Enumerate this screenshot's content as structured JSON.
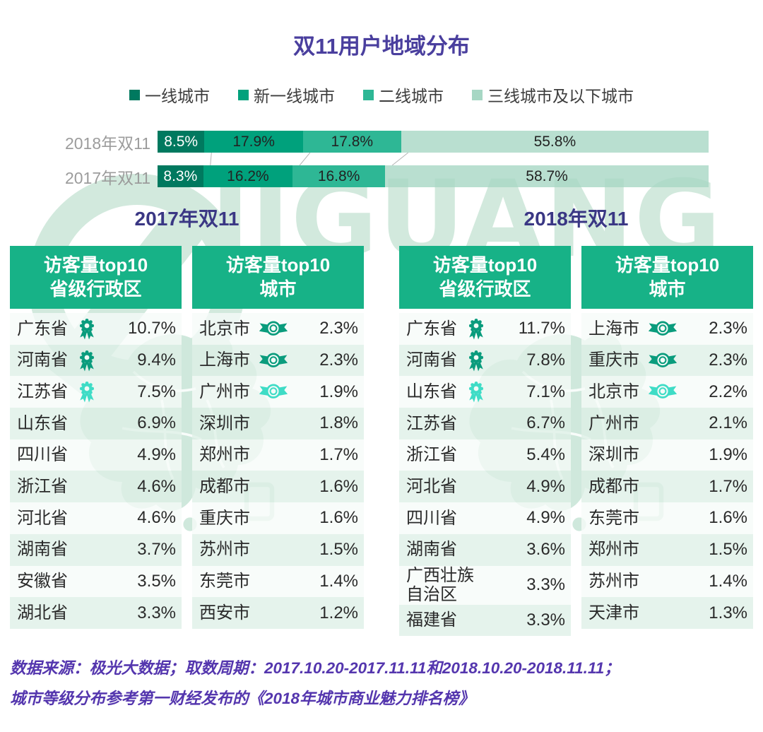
{
  "title": "双11用户地域分布",
  "watermark": {
    "text": "JIGUANG"
  },
  "legend": {
    "items": [
      {
        "label": "一线城市",
        "color": "#00795f"
      },
      {
        "label": "新一线城市",
        "color": "#00a17c"
      },
      {
        "label": "二线城市",
        "color": "#2eb795"
      },
      {
        "label": "三线城市及以下城市",
        "color": "#a7d7c4"
      }
    ]
  },
  "bar_chart": {
    "segment_colors": [
      "#00795f",
      "#00a17c",
      "#2eb795",
      "rgba(167,215,196,0.8)"
    ],
    "connector_color": "#b5b5b5",
    "rows": [
      {
        "label": "2018年双11",
        "segments": [
          {
            "label": "8.5%",
            "value": 8.5
          },
          {
            "label": "17.9%",
            "value": 17.9
          },
          {
            "label": "17.8%",
            "value": 17.8
          },
          {
            "label": "55.8%",
            "value": 55.8
          }
        ]
      },
      {
        "label": "2017年双11",
        "segments": [
          {
            "label": "8.3%",
            "value": 8.3
          },
          {
            "label": "16.2%",
            "value": 16.2
          },
          {
            "label": "16.8%",
            "value": 16.8
          },
          {
            "label": "58.7%",
            "value": 58.7
          }
        ]
      }
    ]
  },
  "colors": {
    "medal_dark": "#0a9c7d",
    "medal_light": "#3fdcc6",
    "header_green": "#17b287",
    "title_purple": "#4a3f9e",
    "footer_purple": "#5436ae"
  },
  "sections": [
    {
      "heading": "2017年双11",
      "tables": [
        {
          "kind": "province",
          "header": [
            "访客量top10",
            "省级行政区"
          ],
          "rows": [
            {
              "name": "广东省",
              "value": "10.7%",
              "medal": "dark"
            },
            {
              "name": "河南省",
              "value": "9.4%",
              "medal": "dark"
            },
            {
              "name": "江苏省",
              "value": "7.5%",
              "medal": "light"
            },
            {
              "name": "山东省",
              "value": "6.9%",
              "medal": "none"
            },
            {
              "name": "四川省",
              "value": "4.9%",
              "medal": "none"
            },
            {
              "name": "浙江省",
              "value": "4.6%",
              "medal": "none"
            },
            {
              "name": "河北省",
              "value": "4.6%",
              "medal": "none"
            },
            {
              "name": "湖南省",
              "value": "3.7%",
              "medal": "none"
            },
            {
              "name": "安徽省",
              "value": "3.5%",
              "medal": "none"
            },
            {
              "name": "湖北省",
              "value": "3.3%",
              "medal": "none"
            }
          ]
        },
        {
          "kind": "city",
          "header": [
            "访客量top10",
            "城市"
          ],
          "rows": [
            {
              "name": "北京市",
              "value": "2.3%",
              "medal": "dark"
            },
            {
              "name": "上海市",
              "value": "2.3%",
              "medal": "dark"
            },
            {
              "name": "广州市",
              "value": "1.9%",
              "medal": "light"
            },
            {
              "name": "深圳市",
              "value": "1.8%",
              "medal": "none"
            },
            {
              "name": "郑州市",
              "value": "1.7%",
              "medal": "none"
            },
            {
              "name": "成都市",
              "value": "1.6%",
              "medal": "none"
            },
            {
              "name": "重庆市",
              "value": "1.6%",
              "medal": "none"
            },
            {
              "name": "苏州市",
              "value": "1.5%",
              "medal": "none"
            },
            {
              "name": "东莞市",
              "value": "1.4%",
              "medal": "none"
            },
            {
              "name": "西安市",
              "value": "1.2%",
              "medal": "none"
            }
          ]
        }
      ]
    },
    {
      "heading": "2018年双11",
      "tables": [
        {
          "kind": "province",
          "header": [
            "访客量top10",
            "省级行政区"
          ],
          "rows": [
            {
              "name": "广东省",
              "value": "11.7%",
              "medal": "dark"
            },
            {
              "name": "河南省",
              "value": "7.8%",
              "medal": "dark"
            },
            {
              "name": "山东省",
              "value": "7.1%",
              "medal": "light"
            },
            {
              "name": "江苏省",
              "value": "6.7%",
              "medal": "none"
            },
            {
              "name": "浙江省",
              "value": "5.4%",
              "medal": "none"
            },
            {
              "name": "河北省",
              "value": "4.9%",
              "medal": "none"
            },
            {
              "name": "四川省",
              "value": "4.9%",
              "medal": "none"
            },
            {
              "name": "湖南省",
              "value": "3.6%",
              "medal": "none"
            },
            {
              "name": "广西壮族自治区",
              "value": "3.3%",
              "medal": "none"
            },
            {
              "name": "福建省",
              "value": "3.3%",
              "medal": "none"
            }
          ]
        },
        {
          "kind": "city",
          "header": [
            "访客量top10",
            "城市"
          ],
          "rows": [
            {
              "name": "上海市",
              "value": "2.3%",
              "medal": "dark"
            },
            {
              "name": "重庆市",
              "value": "2.3%",
              "medal": "dark"
            },
            {
              "name": "北京市",
              "value": "2.2%",
              "medal": "light"
            },
            {
              "name": "广州市",
              "value": "2.1%",
              "medal": "none"
            },
            {
              "name": "深圳市",
              "value": "1.9%",
              "medal": "none"
            },
            {
              "name": "成都市",
              "value": "1.7%",
              "medal": "none"
            },
            {
              "name": "东莞市",
              "value": "1.6%",
              "medal": "none"
            },
            {
              "name": "郑州市",
              "value": "1.5%",
              "medal": "none"
            },
            {
              "name": "苏州市",
              "value": "1.4%",
              "medal": "none"
            },
            {
              "name": "天津市",
              "value": "1.3%",
              "medal": "none"
            }
          ]
        }
      ]
    }
  ],
  "footer": {
    "line1": "数据来源：极光大数据；取数周期：2017.10.20-2017.11.11和2018.10.20-2018.11.11；",
    "line2": "城市等级分布参考第一财经发布的《2018年城市商业魅力排名榜》"
  },
  "chart_data": [
    {
      "type": "bar",
      "orientation": "horizontal",
      "stacked": true,
      "title": "双11用户地域分布",
      "unit": "%",
      "categories": [
        "2018年双11",
        "2017年双11"
      ],
      "series": [
        {
          "name": "一线城市",
          "values": [
            8.5,
            8.3
          ]
        },
        {
          "name": "新一线城市",
          "values": [
            17.9,
            16.2
          ]
        },
        {
          "name": "二线城市",
          "values": [
            17.8,
            16.8
          ]
        },
        {
          "name": "三线城市及以下城市",
          "values": [
            55.8,
            58.7
          ]
        }
      ],
      "legend_position": "top"
    },
    {
      "type": "table",
      "title": "2017年双11 访客量top10省级行政区",
      "unit": "%",
      "rows": [
        [
          "广东省",
          10.7
        ],
        [
          "河南省",
          9.4
        ],
        [
          "江苏省",
          7.5
        ],
        [
          "山东省",
          6.9
        ],
        [
          "四川省",
          4.9
        ],
        [
          "浙江省",
          4.6
        ],
        [
          "河北省",
          4.6
        ],
        [
          "湖南省",
          3.7
        ],
        [
          "安徽省",
          3.5
        ],
        [
          "湖北省",
          3.3
        ]
      ]
    },
    {
      "type": "table",
      "title": "2017年双11 访客量top10城市",
      "unit": "%",
      "rows": [
        [
          "北京市",
          2.3
        ],
        [
          "上海市",
          2.3
        ],
        [
          "广州市",
          1.9
        ],
        [
          "深圳市",
          1.8
        ],
        [
          "郑州市",
          1.7
        ],
        [
          "成都市",
          1.6
        ],
        [
          "重庆市",
          1.6
        ],
        [
          "苏州市",
          1.5
        ],
        [
          "东莞市",
          1.4
        ],
        [
          "西安市",
          1.2
        ]
      ]
    },
    {
      "type": "table",
      "title": "2018年双11 访客量top10省级行政区",
      "unit": "%",
      "rows": [
        [
          "广东省",
          11.7
        ],
        [
          "河南省",
          7.8
        ],
        [
          "山东省",
          7.1
        ],
        [
          "江苏省",
          6.7
        ],
        [
          "浙江省",
          5.4
        ],
        [
          "河北省",
          4.9
        ],
        [
          "四川省",
          4.9
        ],
        [
          "湖南省",
          3.6
        ],
        [
          "广西壮族自治区",
          3.3
        ],
        [
          "福建省",
          3.3
        ]
      ]
    },
    {
      "type": "table",
      "title": "2018年双11 访客量top10城市",
      "unit": "%",
      "rows": [
        [
          "上海市",
          2.3
        ],
        [
          "重庆市",
          2.3
        ],
        [
          "北京市",
          2.2
        ],
        [
          "广州市",
          2.1
        ],
        [
          "深圳市",
          1.9
        ],
        [
          "成都市",
          1.7
        ],
        [
          "东莞市",
          1.6
        ],
        [
          "郑州市",
          1.5
        ],
        [
          "苏州市",
          1.4
        ],
        [
          "天津市",
          1.3
        ]
      ]
    }
  ]
}
